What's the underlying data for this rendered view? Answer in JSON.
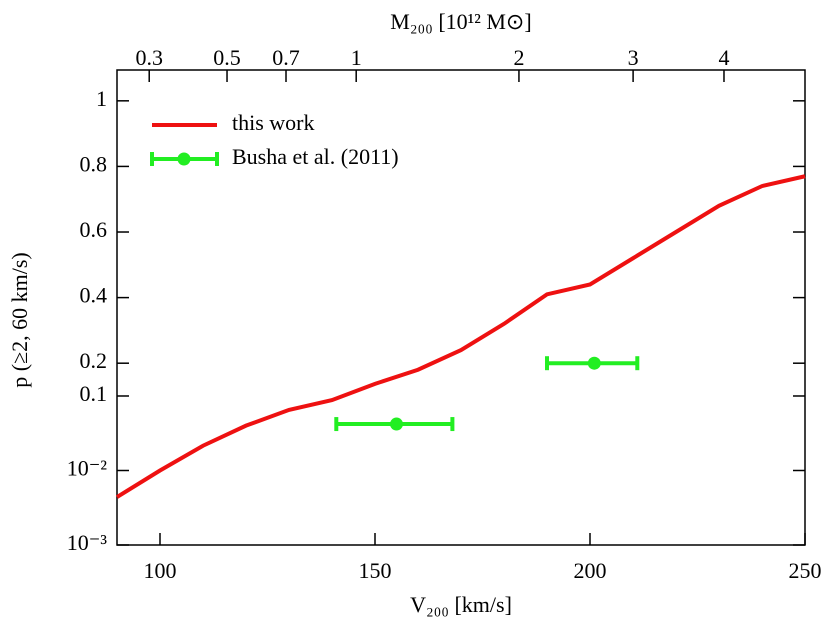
{
  "chart_data": {
    "type": "line",
    "xlabel": "V₂₀₀ [km/s]",
    "ylabel": "p (≥2, 60 km/s)",
    "x2label": "M₂₀₀ [10¹² M⊙]",
    "xlim": [
      90,
      250
    ],
    "xticks": [
      100,
      150,
      200,
      250
    ],
    "x2lim": [
      0.236,
      5.06
    ],
    "x2scale": "cube-root",
    "x2ticks": [
      0.3,
      0.5,
      0.7,
      1,
      2,
      3,
      4
    ],
    "ylim": [
      0.001,
      1.094
    ],
    "yscale": "log-below-linear-above",
    "yswitch": 0.1,
    "yticks": [
      {
        "value": 0.001,
        "label": "10⁻³"
      },
      {
        "value": 0.01,
        "label": "10⁻²"
      },
      0.1,
      0.2,
      0.4,
      0.6,
      0.8,
      1
    ],
    "legend": "upper left",
    "series": [
      {
        "name": "this work",
        "color": "#ee1111",
        "x": [
          90,
          100,
          110,
          120,
          130,
          140,
          150,
          160,
          170,
          180,
          190,
          200,
          210,
          220,
          230,
          240,
          250
        ],
        "values": [
          0.0044,
          0.01,
          0.0215,
          0.04,
          0.065,
          0.088,
          0.137,
          0.18,
          0.24,
          0.32,
          0.41,
          0.44,
          0.52,
          0.6,
          0.68,
          0.74,
          0.77
        ]
      },
      {
        "name": "Busha et al. (2011)",
        "color": "#22ee22",
        "errorbar": true,
        "x": [
          155,
          201
        ],
        "values": [
          0.042,
          0.2
        ],
        "xlow": [
          141,
          190
        ],
        "xhigh": [
          168,
          211
        ]
      }
    ]
  }
}
